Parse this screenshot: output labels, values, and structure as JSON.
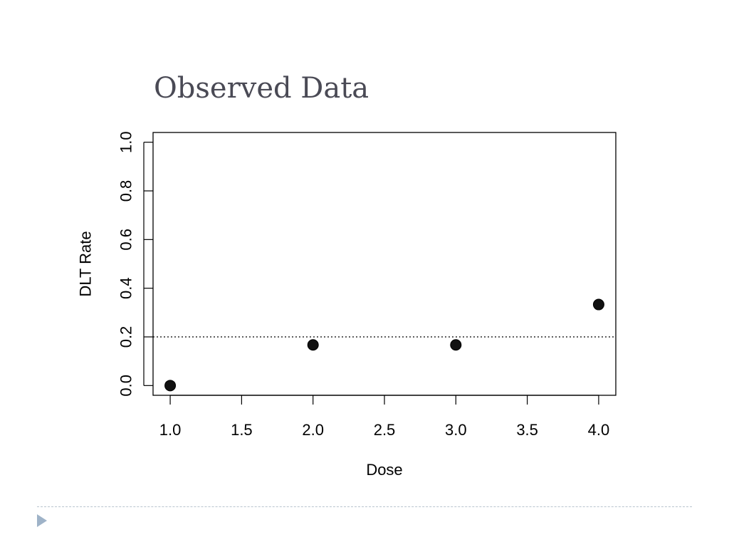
{
  "slide": {
    "title": "Observed Data"
  },
  "colors": {
    "title": "#4a4a55",
    "points": "#111111",
    "axis": "#000000",
    "footer_rule": "#b8c4ce",
    "footer_arrow": "#9fb3c8"
  },
  "icons": {
    "footer": "triangle-bullet-icon"
  },
  "chart_data": {
    "type": "scatter",
    "title": "",
    "xlabel": "Dose",
    "ylabel": "DLT Rate",
    "xlim": [
      0.88,
      4.12
    ],
    "ylim": [
      -0.04,
      1.04
    ],
    "x_ticks": [
      1.0,
      1.5,
      2.0,
      2.5,
      3.0,
      3.5,
      4.0
    ],
    "x_tick_labels": [
      "1.0",
      "1.5",
      "2.0",
      "2.5",
      "3.0",
      "3.5",
      "4.0"
    ],
    "y_ticks": [
      0.0,
      0.2,
      0.4,
      0.6,
      0.8,
      1.0
    ],
    "y_tick_labels": [
      "0.0",
      "0.2",
      "0.4",
      "0.6",
      "0.8",
      "1.0"
    ],
    "series": [
      {
        "x": [
          1.0,
          2.0,
          3.0,
          4.0
        ],
        "y": [
          0.0,
          0.167,
          0.167,
          0.333
        ]
      }
    ],
    "reference_lines": [
      {
        "orientation": "horizontal",
        "y": 0.2,
        "style": "dotted"
      }
    ],
    "grid": false,
    "legend": "none"
  }
}
